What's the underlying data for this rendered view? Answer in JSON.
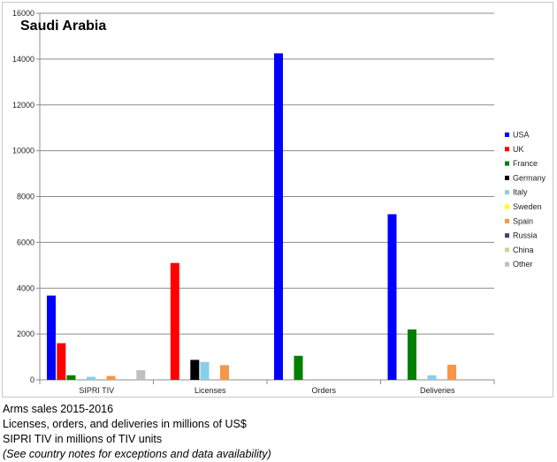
{
  "chart_data": {
    "type": "bar",
    "title": "Saudi Arabia",
    "categories": [
      "SIPRI TIV",
      "Licenses",
      "Orders",
      "Deliveries"
    ],
    "ylim": [
      0,
      16000
    ],
    "yticks": [
      0,
      2000,
      4000,
      6000,
      8000,
      10000,
      12000,
      14000,
      16000
    ],
    "grid": true,
    "legend_position": "right",
    "series": [
      {
        "name": "USA",
        "color": "#0000ff",
        "values": [
          3680,
          0,
          14250,
          7230
        ]
      },
      {
        "name": "UK",
        "color": "#ff0000",
        "values": [
          1600,
          5100,
          0,
          0
        ]
      },
      {
        "name": "France",
        "color": "#008000",
        "values": [
          200,
          0,
          1050,
          2200
        ]
      },
      {
        "name": "Germany",
        "color": "#000000",
        "values": [
          0,
          870,
          0,
          0
        ]
      },
      {
        "name": "Italy",
        "color": "#87ceeb",
        "values": [
          130,
          780,
          0,
          200
        ]
      },
      {
        "name": "Sweden",
        "color": "#ffff00",
        "values": [
          0,
          0,
          0,
          0
        ]
      },
      {
        "name": "Spain",
        "color": "#f79646",
        "values": [
          170,
          640,
          0,
          660
        ]
      },
      {
        "name": "Russia",
        "color": "#4b3f7a",
        "values": [
          0,
          0,
          0,
          0
        ]
      },
      {
        "name": "China",
        "color": "#c4d79b",
        "values": [
          0,
          0,
          0,
          0
        ]
      },
      {
        "name": "Other",
        "color": "#bfbfbf",
        "values": [
          420,
          0,
          0,
          0
        ]
      }
    ]
  },
  "caption": {
    "line1": "Arms sales 2015-2016",
    "line2": "Licenses, orders, and deliveries in millions of US$",
    "line3": "SIPRI TIV in millions of TIV units",
    "line4": "(See country notes for exceptions and data availability)"
  }
}
